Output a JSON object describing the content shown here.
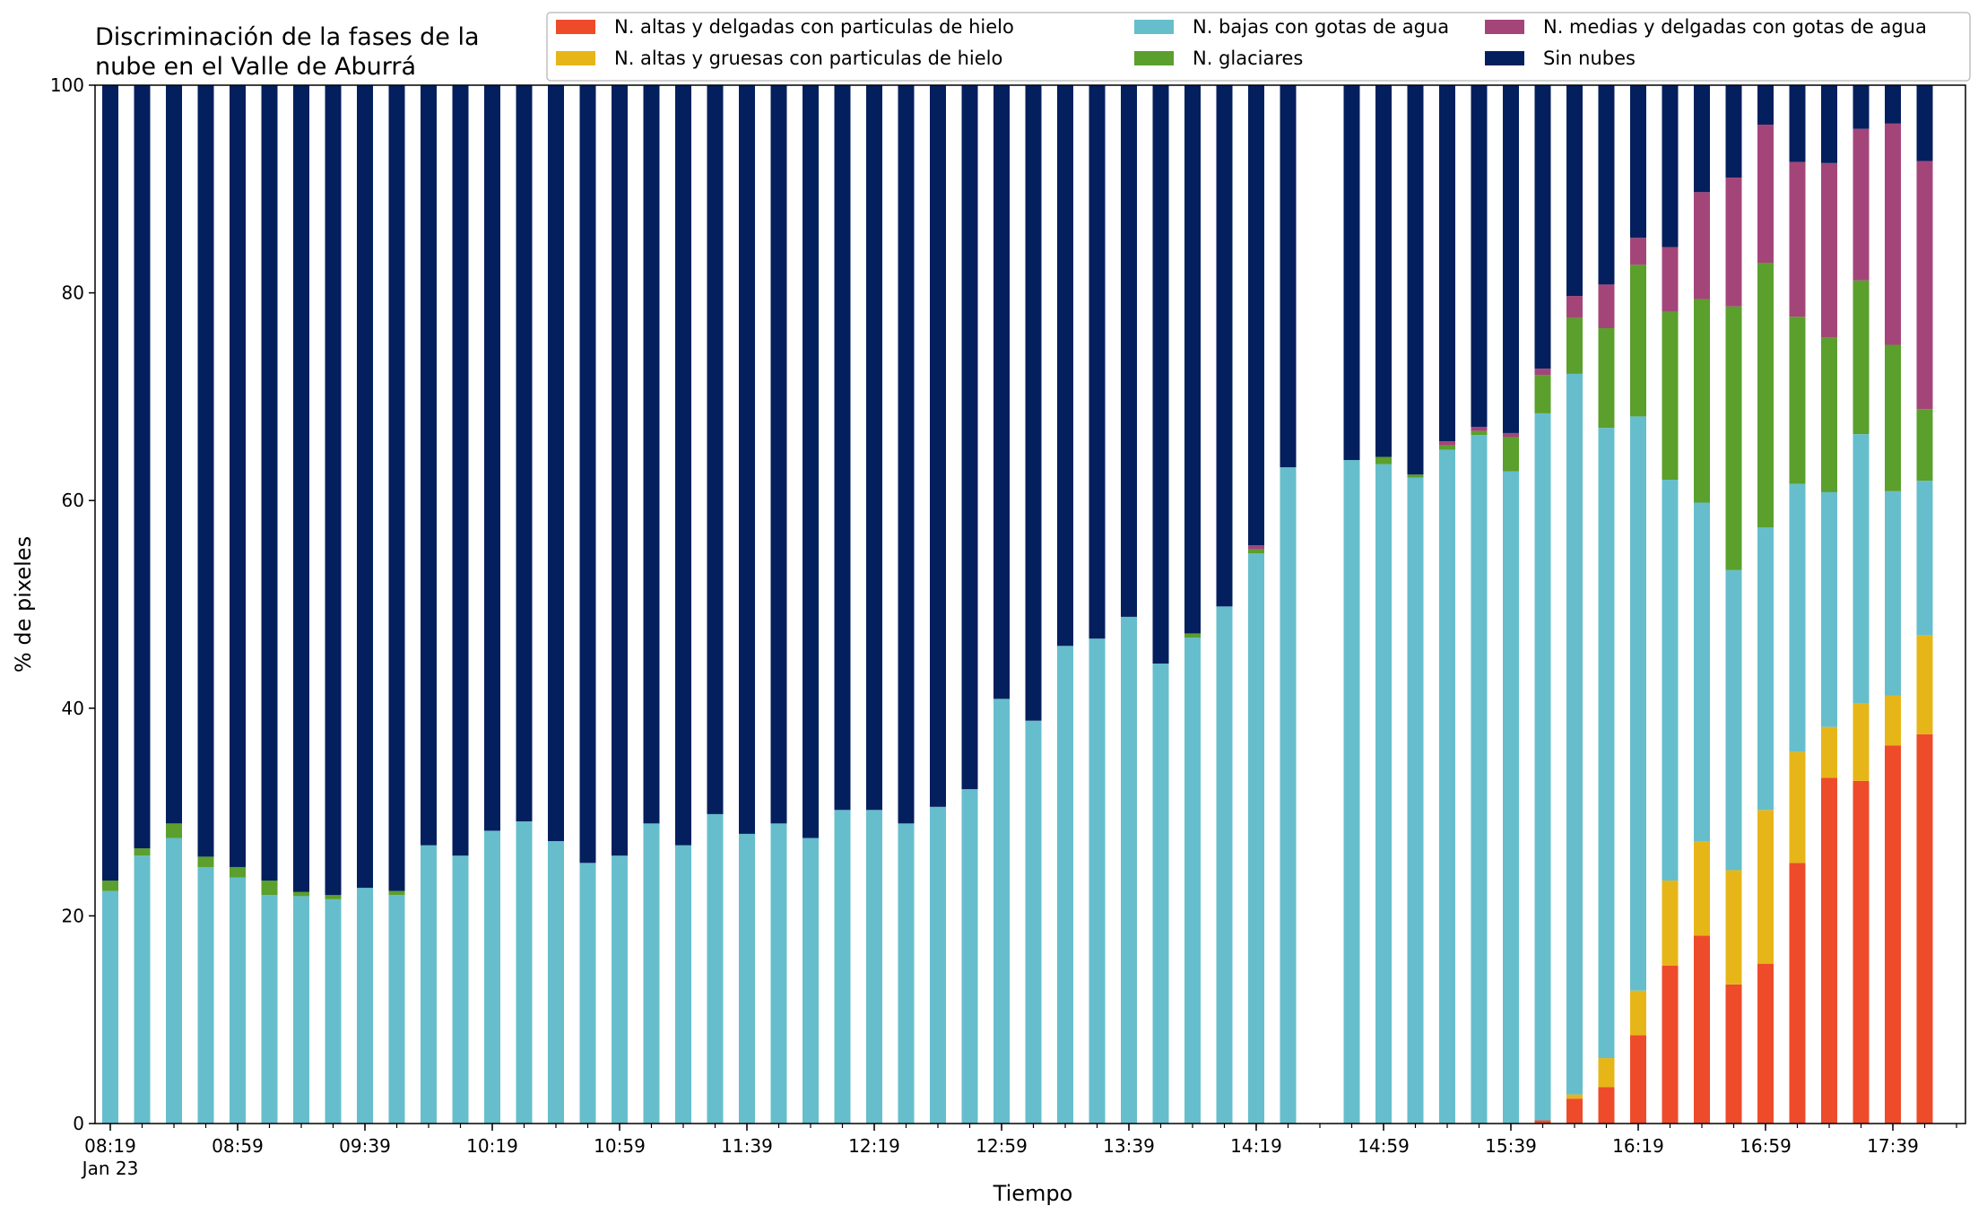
{
  "chart_data": {
    "type": "bar",
    "stacked": true,
    "title_lines": [
      "Discriminación de la fases de la",
      "nube en el Valle de Aburrá"
    ],
    "xlabel": "Tiempo",
    "ylabel": "% de pixeles",
    "ylim": [
      0,
      100
    ],
    "yticks": [
      0,
      20,
      40,
      60,
      80,
      100
    ],
    "grid": false,
    "legend_position": "top-right",
    "time_start": "08:19",
    "step_minutes": 10,
    "xtick_labels": [
      "08:19",
      "08:59",
      "09:39",
      "10:19",
      "10:59",
      "11:39",
      "12:19",
      "12:59",
      "13:39",
      "14:19",
      "14:59",
      "15:39",
      "16:19",
      "16:59",
      "17:39"
    ],
    "xtick_sub_label": "Jan 23",
    "x": [
      "08:19",
      "08:29",
      "08:39",
      "08:49",
      "08:59",
      "09:09",
      "09:19",
      "09:29",
      "09:39",
      "09:49",
      "09:59",
      "10:09",
      "10:19",
      "10:29",
      "10:39",
      "10:49",
      "10:59",
      "11:09",
      "11:19",
      "11:29",
      "11:39",
      "11:49",
      "11:59",
      "12:09",
      "12:19",
      "12:29",
      "12:39",
      "12:49",
      "12:59",
      "13:09",
      "13:19",
      "13:29",
      "13:39",
      "13:49",
      "13:59",
      "14:09",
      "14:19",
      "14:29",
      "14:39",
      "14:49",
      "14:59",
      "15:09",
      "15:19",
      "15:29",
      "15:39",
      "15:49",
      "15:59",
      "16:09",
      "16:19",
      "16:29",
      "16:39",
      "16:49",
      "16:59",
      "17:09",
      "17:19",
      "17:29",
      "17:39",
      "17:49"
    ],
    "series": [
      {
        "name": "N. altas y delgadas con particulas de hielo",
        "color": "#EE4B2B",
        "values": [
          0,
          0,
          0,
          0,
          0,
          0,
          0,
          0,
          0,
          0,
          0,
          0,
          0,
          0,
          0,
          0,
          0,
          0,
          0,
          0,
          0,
          0,
          0,
          0,
          0,
          0,
          0,
          0,
          0,
          0,
          0,
          0,
          0,
          0,
          0,
          0,
          0,
          0,
          null,
          0,
          0,
          0,
          0,
          0,
          0,
          0.3,
          2.4,
          3.5,
          8.5,
          15.2,
          18.1,
          13.4,
          15.4,
          25.1,
          33.3,
          33.0,
          36.4,
          37.5
        ]
      },
      {
        "name": "N. altas y gruesas con particulas de hielo",
        "color": "#E6B619",
        "values": [
          0,
          0,
          0,
          0,
          0,
          0,
          0,
          0,
          0,
          0,
          0,
          0,
          0,
          0,
          0,
          0,
          0,
          0,
          0,
          0,
          0,
          0,
          0,
          0,
          0,
          0,
          0,
          0,
          0,
          0,
          0,
          0,
          0,
          0,
          0,
          0,
          0,
          0,
          null,
          0,
          0,
          0,
          0,
          0,
          0,
          0,
          0.4,
          2.8,
          4.3,
          8.2,
          9.1,
          11.0,
          14.8,
          10.7,
          4.9,
          7.5,
          4.8,
          9.5
        ]
      },
      {
        "name": "N. bajas con gotas de agua",
        "color": "#66BECC",
        "values": [
          22.4,
          25.8,
          27.5,
          24.7,
          23.7,
          22.0,
          21.9,
          21.6,
          22.7,
          22.0,
          26.8,
          25.8,
          28.2,
          29.1,
          27.2,
          25.1,
          25.8,
          28.9,
          26.8,
          29.8,
          27.9,
          28.9,
          27.5,
          30.2,
          30.2,
          28.9,
          30.5,
          32.2,
          40.9,
          38.8,
          46.0,
          46.7,
          48.8,
          44.3,
          46.8,
          49.8,
          54.9,
          63.2,
          null,
          63.9,
          63.5,
          62.2,
          64.9,
          66.3,
          62.8,
          68.1,
          69.4,
          60.7,
          55.3,
          38.6,
          32.6,
          28.9,
          27.2,
          25.8,
          22.6,
          25.9,
          19.7,
          14.9
        ]
      },
      {
        "name": "N. glaciares",
        "color": "#5B9F2C",
        "values": [
          1.0,
          0.7,
          1.4,
          1.0,
          1.0,
          1.4,
          0.4,
          0.4,
          0,
          0.4,
          0,
          0,
          0,
          0,
          0,
          0,
          0,
          0,
          0,
          0,
          0,
          0,
          0,
          0,
          0,
          0,
          0,
          0,
          0,
          0,
          0,
          0,
          0,
          0,
          0.4,
          0,
          0.4,
          0,
          null,
          0,
          0.7,
          0.3,
          0.4,
          0.4,
          3.3,
          3.7,
          5.4,
          9.6,
          14.6,
          16.2,
          19.6,
          25.4,
          25.5,
          16.1,
          14.9,
          14.8,
          14.1,
          6.9
        ]
      },
      {
        "name": "N. medias y delgadas con gotas de agua",
        "color": "#A4457A",
        "values": [
          0,
          0,
          0,
          0,
          0,
          0,
          0,
          0,
          0,
          0,
          0,
          0,
          0,
          0,
          0,
          0,
          0,
          0,
          0,
          0,
          0,
          0,
          0,
          0,
          0,
          0,
          0,
          0,
          0,
          0,
          0,
          0,
          0,
          0,
          0,
          0,
          0.4,
          0,
          null,
          0,
          0,
          0,
          0.4,
          0.4,
          0.4,
          0.6,
          2.1,
          4.2,
          2.6,
          6.2,
          10.3,
          12.4,
          13.3,
          14.9,
          16.8,
          14.6,
          21.3,
          23.9
        ]
      },
      {
        "name": "Sin nubes",
        "color": "#041F5E",
        "values": [
          76.6,
          73.5,
          71.1,
          74.3,
          75.3,
          76.6,
          77.7,
          78.0,
          77.3,
          77.6,
          73.2,
          74.2,
          71.8,
          70.9,
          72.8,
          74.9,
          74.2,
          71.1,
          73.2,
          70.2,
          72.1,
          71.1,
          72.5,
          69.8,
          69.8,
          71.1,
          69.5,
          67.8,
          59.1,
          61.2,
          54.0,
          53.3,
          51.2,
          55.7,
          52.8,
          50.2,
          44.3,
          36.8,
          null,
          36.1,
          35.8,
          37.5,
          34.3,
          32.9,
          33.5,
          27.3,
          20.3,
          19.2,
          14.7,
          15.6,
          10.3,
          8.9,
          3.8,
          7.4,
          7.5,
          4.2,
          3.7,
          7.3
        ]
      }
    ]
  }
}
